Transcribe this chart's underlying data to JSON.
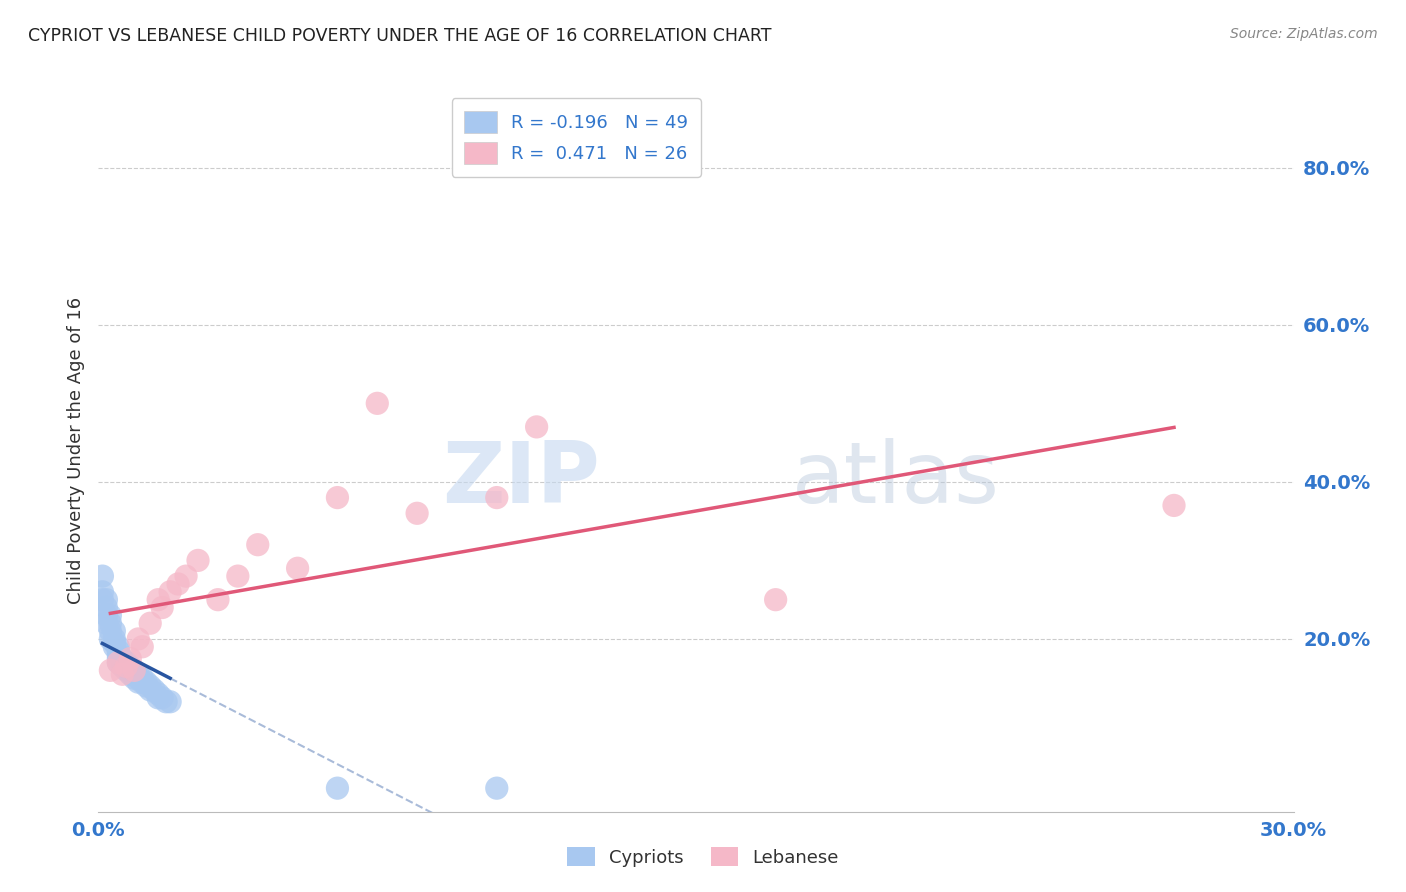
{
  "title": "CYPRIOT VS LEBANESE CHILD POVERTY UNDER THE AGE OF 16 CORRELATION CHART",
  "source": "Source: ZipAtlas.com",
  "ylabel": "Child Poverty Under the Age of 16",
  "ytick_labels": [
    "80.0%",
    "60.0%",
    "40.0%",
    "20.0%"
  ],
  "ytick_values": [
    0.8,
    0.6,
    0.4,
    0.2
  ],
  "xlim": [
    0.0,
    0.3
  ],
  "ylim": [
    -0.02,
    0.9
  ],
  "xtick_left_label": "0.0%",
  "xtick_right_label": "30.0%",
  "legend_r_cypriot": "-0.196",
  "legend_n_cypriot": "49",
  "legend_r_lebanese": "0.471",
  "legend_n_lebanese": "26",
  "cypriot_color": "#a8c8f0",
  "lebanese_color": "#f5b8c8",
  "cypriot_line_color": "#2855a0",
  "lebanese_line_color": "#e05878",
  "background_color": "#ffffff",
  "watermark_zip": "ZIP",
  "watermark_atlas": "atlas",
  "cypriot_x": [
    0.001,
    0.001,
    0.001,
    0.002,
    0.002,
    0.002,
    0.002,
    0.003,
    0.003,
    0.003,
    0.003,
    0.004,
    0.004,
    0.004,
    0.004,
    0.005,
    0.005,
    0.005,
    0.005,
    0.005,
    0.006,
    0.006,
    0.006,
    0.007,
    0.007,
    0.007,
    0.008,
    0.008,
    0.008,
    0.009,
    0.009,
    0.009,
    0.01,
    0.01,
    0.01,
    0.011,
    0.011,
    0.012,
    0.012,
    0.013,
    0.013,
    0.014,
    0.015,
    0.015,
    0.016,
    0.017,
    0.018,
    0.06,
    0.1
  ],
  "cypriot_y": [
    0.28,
    0.26,
    0.25,
    0.25,
    0.24,
    0.23,
    0.22,
    0.23,
    0.22,
    0.21,
    0.2,
    0.21,
    0.2,
    0.195,
    0.19,
    0.19,
    0.185,
    0.18,
    0.175,
    0.17,
    0.175,
    0.17,
    0.165,
    0.17,
    0.165,
    0.16,
    0.165,
    0.16,
    0.155,
    0.16,
    0.155,
    0.15,
    0.155,
    0.15,
    0.145,
    0.15,
    0.145,
    0.145,
    0.14,
    0.14,
    0.135,
    0.135,
    0.13,
    0.125,
    0.125,
    0.12,
    0.12,
    0.01,
    0.01
  ],
  "lebanese_x": [
    0.003,
    0.005,
    0.006,
    0.007,
    0.008,
    0.009,
    0.01,
    0.011,
    0.013,
    0.015,
    0.016,
    0.018,
    0.02,
    0.022,
    0.025,
    0.03,
    0.035,
    0.04,
    0.05,
    0.06,
    0.07,
    0.08,
    0.1,
    0.11,
    0.17,
    0.27
  ],
  "lebanese_y": [
    0.16,
    0.17,
    0.155,
    0.165,
    0.175,
    0.16,
    0.2,
    0.19,
    0.22,
    0.25,
    0.24,
    0.26,
    0.27,
    0.28,
    0.3,
    0.25,
    0.28,
    0.32,
    0.29,
    0.38,
    0.5,
    0.36,
    0.38,
    0.47,
    0.25,
    0.37
  ]
}
